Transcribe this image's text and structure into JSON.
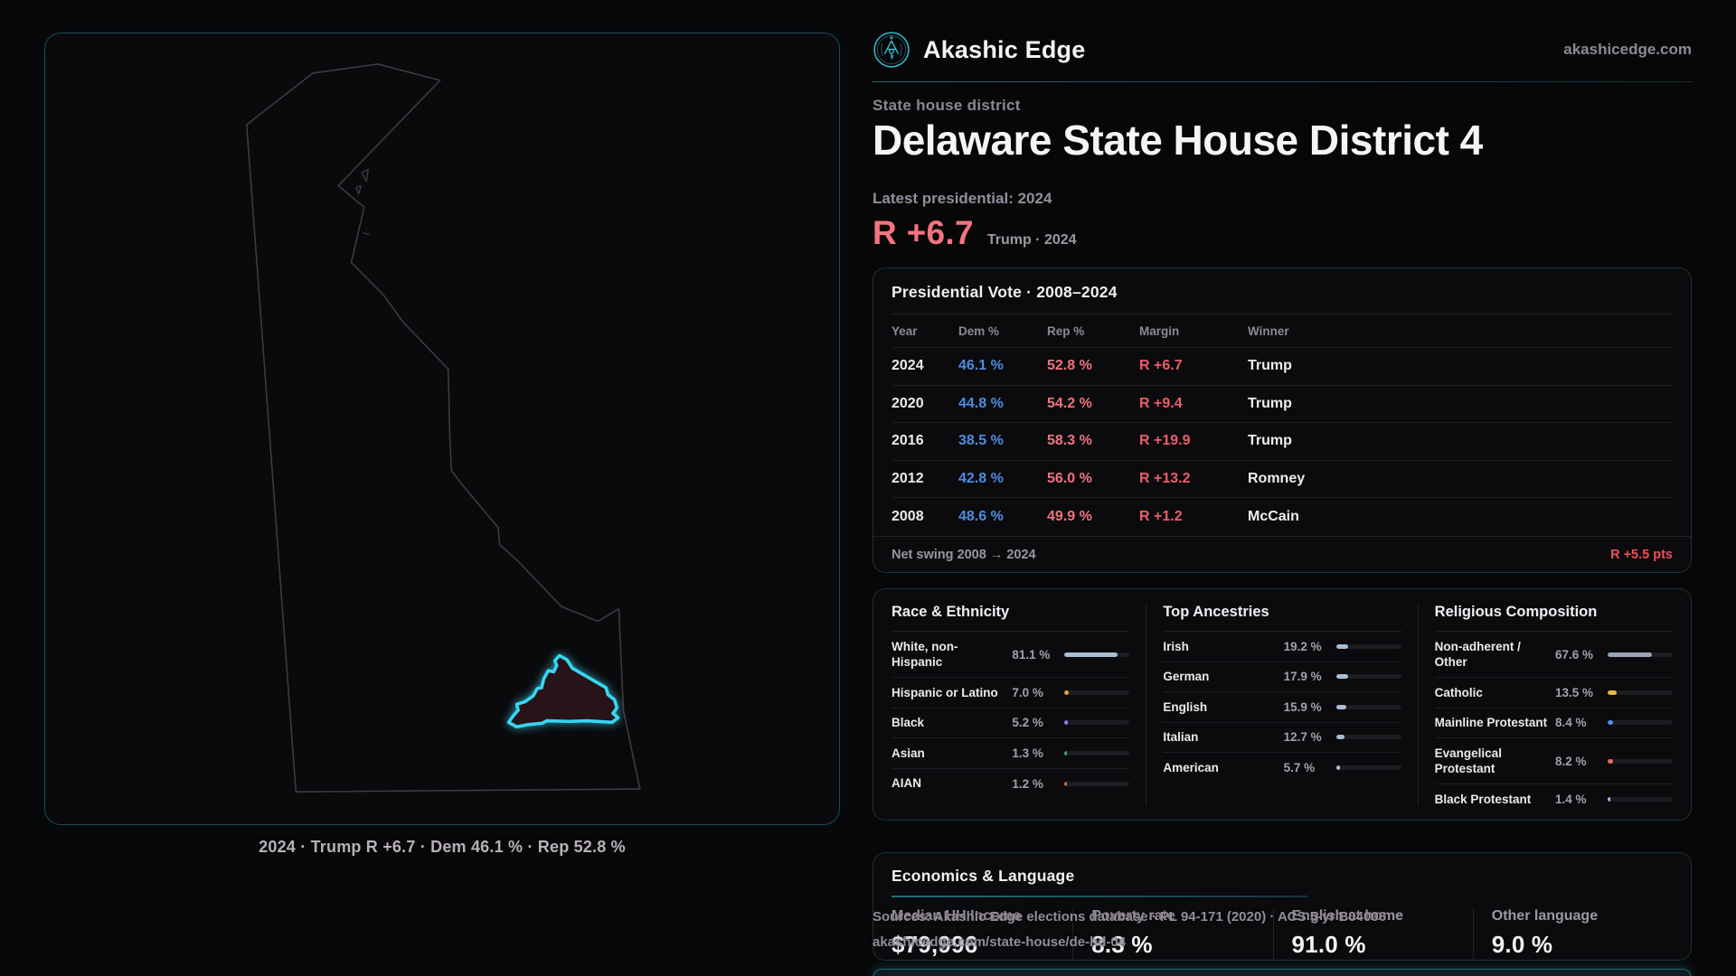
{
  "brand": {
    "name": "Akashic Edge",
    "domain": "akashicedge.com",
    "accent_color": "#3cc7de"
  },
  "page_header": {
    "kicker": "State house district",
    "title": "Delaware State House District 4",
    "latest_label": "Latest presidential: 2024",
    "headline_margin": "R +6.7",
    "headline_context": "Trump · 2024",
    "margin_color": "#f4747e"
  },
  "map": {
    "caption": "2024 · Trump R +6.7 · Dem 46.1 % · Rep 52.8 %",
    "district_outline_color": "#38d6f2",
    "state_outline_color": "#3b3b42"
  },
  "presidential_table": {
    "title": "Presidential Vote · 2008–2024",
    "columns": [
      "Year",
      "Dem %",
      "Rep %",
      "Margin",
      "Winner"
    ],
    "rows": [
      {
        "year": "2024",
        "dem": "46.1 %",
        "rep": "52.8 %",
        "margin": "R +6.7",
        "winner": "Trump"
      },
      {
        "year": "2020",
        "dem": "44.8 %",
        "rep": "54.2 %",
        "margin": "R +9.4",
        "winner": "Trump"
      },
      {
        "year": "2016",
        "dem": "38.5 %",
        "rep": "58.3 %",
        "margin": "R +19.9",
        "winner": "Trump"
      },
      {
        "year": "2012",
        "dem": "42.8 %",
        "rep": "56.0 %",
        "margin": "R +13.2",
        "winner": "Romney"
      },
      {
        "year": "2008",
        "dem": "48.6 %",
        "rep": "49.9 %",
        "margin": "R +1.2",
        "winner": "McCain"
      }
    ],
    "footer_label": "Net swing 2008 → 2024",
    "footer_value": "R +5.5 pts"
  },
  "demographics": {
    "columns": [
      {
        "title": "Race & Ethnicity",
        "rows": [
          {
            "label": "White, non-Hispanic",
            "value": "81.1 %",
            "pct": 81.1,
            "color": "#a9bed4"
          },
          {
            "label": "Hispanic or Latino",
            "value": "7.0 %",
            "pct": 7.0,
            "color": "#e2a13c"
          },
          {
            "label": "Black",
            "value": "5.2 %",
            "pct": 5.2,
            "color": "#8d7bec"
          },
          {
            "label": "Asian",
            "value": "1.3 %",
            "pct": 1.3,
            "color": "#2ea57a"
          },
          {
            "label": "AIAN",
            "value": "1.2 %",
            "pct": 1.2,
            "color": "#c96f35"
          }
        ]
      },
      {
        "title": "Top Ancestries",
        "rows": [
          {
            "label": "Irish",
            "value": "19.2 %",
            "pct": 19.2,
            "color": "#a9bed4"
          },
          {
            "label": "German",
            "value": "17.9 %",
            "pct": 17.9,
            "color": "#a9bed4"
          },
          {
            "label": "English",
            "value": "15.9 %",
            "pct": 15.9,
            "color": "#a9bed4"
          },
          {
            "label": "Italian",
            "value": "12.7 %",
            "pct": 12.7,
            "color": "#a9bed4"
          },
          {
            "label": "American",
            "value": "5.7 %",
            "pct": 5.7,
            "color": "#a9bed4"
          }
        ]
      },
      {
        "title": "Religious Composition",
        "rows": [
          {
            "label": "Non-adherent / Other",
            "value": "67.6 %",
            "pct": 67.6,
            "color": "#9aa5b8"
          },
          {
            "label": "Catholic",
            "value": "13.5 %",
            "pct": 13.5,
            "color": "#e6b93f"
          },
          {
            "label": "Mainline Protestant",
            "value": "8.4 %",
            "pct": 8.4,
            "color": "#4e8fe6"
          },
          {
            "label": "Evangelical Protestant",
            "value": "8.2 %",
            "pct": 8.2,
            "color": "#e56a6a"
          },
          {
            "label": "Black Protestant",
            "value": "1.4 %",
            "pct": 1.4,
            "color": "#b5b0f0"
          }
        ]
      }
    ]
  },
  "economics": {
    "title": "Economics & Language",
    "stats": [
      {
        "label": "Median HH Income",
        "value": "$79,996"
      },
      {
        "label": "Poverty rate",
        "value": "8.3 %"
      },
      {
        "label": "English at home",
        "value": "91.0 %"
      },
      {
        "label": "Other language",
        "value": "9.0 %"
      }
    ]
  },
  "source": {
    "line1": "Sources: Akashic Edge elections database · PL 94-171 (2020) · ACS 5-yr B04006",
    "line2": "akashicedge.com/state-house/de-hd-04"
  }
}
